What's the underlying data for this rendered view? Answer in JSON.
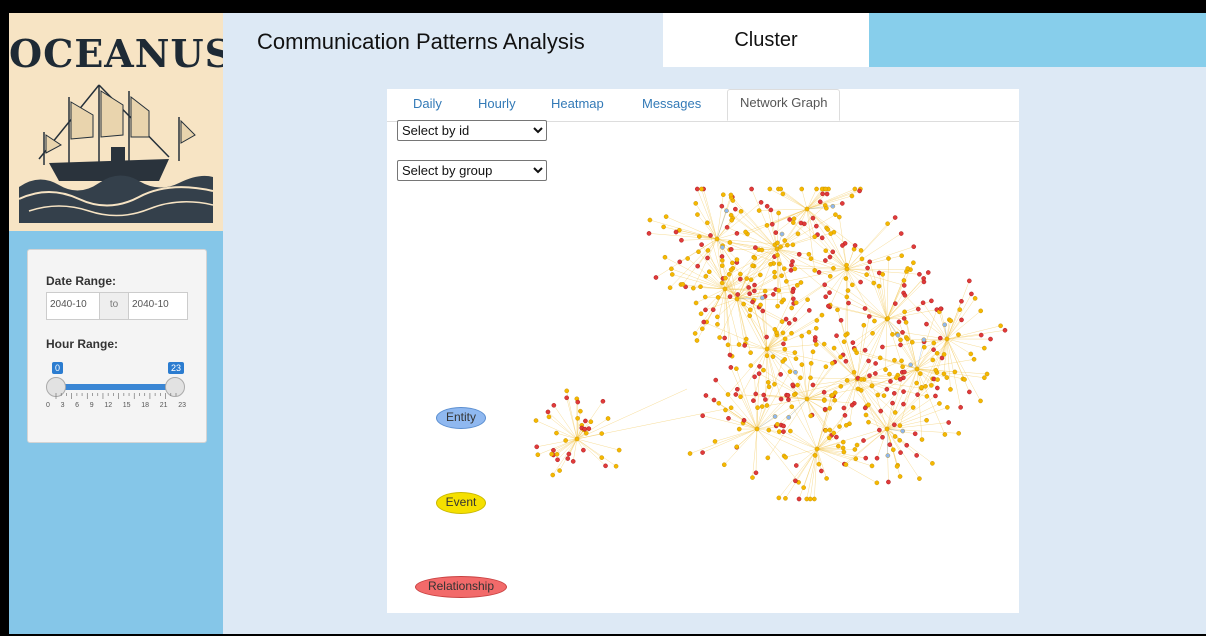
{
  "logo": {
    "text": "OCEANUS"
  },
  "sidebar": {
    "date_range_label": "Date Range:",
    "date_start": "2040-10",
    "date_to": "to",
    "date_end": "2040-10",
    "hour_range_label": "Hour Range:",
    "hour_min": "0",
    "hour_max": "23",
    "hour_range_from": 0,
    "hour_range_to": 23,
    "hour_tick_labels": [
      "0",
      "3",
      "6",
      "9",
      "12",
      "15",
      "18",
      "21",
      "23"
    ]
  },
  "header": {
    "title": "Communication Patterns Analysis",
    "active_tab": "Cluster"
  },
  "tabs": [
    "Daily",
    "Hourly",
    "Heatmap",
    "Messages",
    "Network Graph"
  ],
  "active_tab": "Network Graph",
  "controls": {
    "select_id": "Select by id",
    "select_group": "Select by group"
  },
  "legend": {
    "entity": "Entity",
    "event": "Event",
    "relationship": "Relationship"
  },
  "colors": {
    "entity": "#8fb8f0",
    "event": "#f5e000",
    "relationship": "#f26a6a",
    "node_event": "#f5b800",
    "node_relationship": "#e03a3a",
    "edge": "#f0c040",
    "sidebar": "#85c6e8",
    "header_right": "#87ceeb",
    "slider_blue": "#3a86d4"
  }
}
